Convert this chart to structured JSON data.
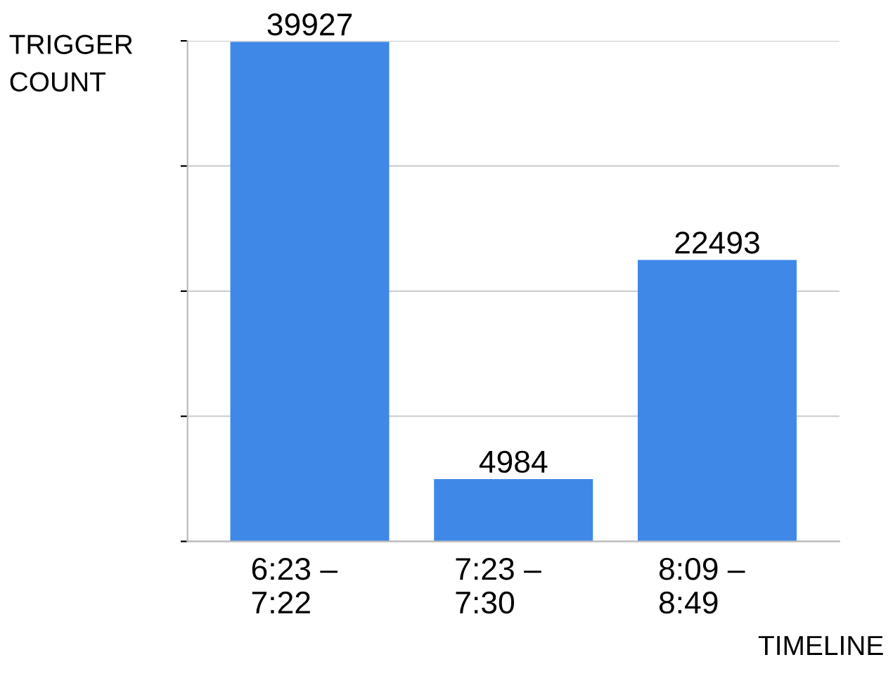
{
  "chart_data": {
    "type": "bar",
    "xlabel": "TIMELINE",
    "ylabel": "TRIGGER\nCOUNT",
    "categories": [
      "6:23 –\n7:22",
      "7:23 –\n7:30",
      "8:09 –\n8:49"
    ],
    "values": [
      39927,
      4984,
      22493
    ],
    "color": "#3f88e8",
    "ylim": [
      0,
      40000
    ],
    "yticks": [
      {
        "value": 0,
        "label": null
      },
      {
        "value": 10000,
        "label": null
      },
      {
        "value": 20000,
        "label": null
      },
      {
        "value": 30000,
        "label": null
      },
      {
        "value": 40000,
        "label": null
      }
    ],
    "grid": "y",
    "data_labels": true
  }
}
